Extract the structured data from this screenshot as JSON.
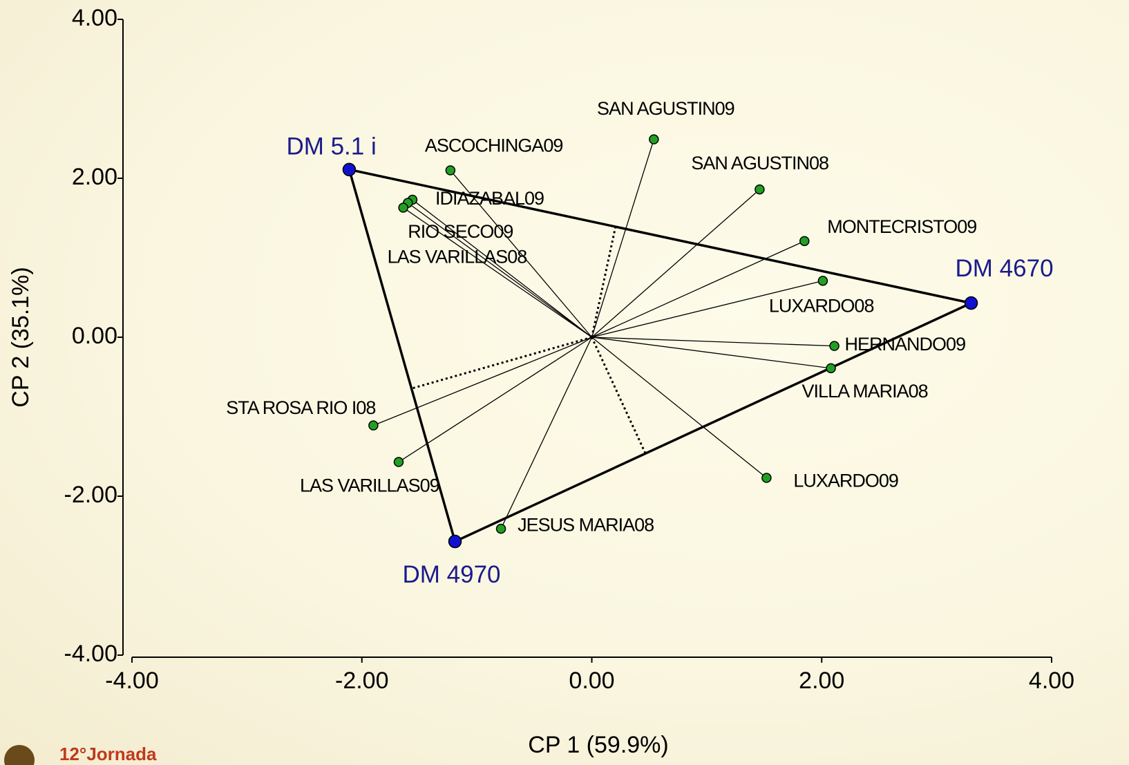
{
  "chart_data": {
    "type": "scatter",
    "xlabel": "CP 1 (59.9%)",
    "ylabel": "CP 2 (35.1%)",
    "xlim": [
      -4,
      4
    ],
    "ylim": [
      -4,
      4
    ],
    "xticks": [
      {
        "value": -4,
        "label": "-4.00"
      },
      {
        "value": -2,
        "label": "-2.00"
      },
      {
        "value": 0,
        "label": "0.00"
      },
      {
        "value": 2,
        "label": "2.00"
      },
      {
        "value": 4,
        "label": "4.00"
      }
    ],
    "yticks": [
      {
        "value": -4,
        "label": "-4.00"
      },
      {
        "value": -2,
        "label": "-2.00"
      },
      {
        "value": 0,
        "label": "0.00"
      },
      {
        "value": 2,
        "label": "2.00"
      },
      {
        "value": 4,
        "label": "4.00"
      }
    ],
    "genotypes": {
      "color": "#1010d0",
      "labels": [
        "DM 5.1 i",
        "DM 4670",
        "DM 4970"
      ],
      "x": [
        -2.11,
        3.3,
        -1.19
      ],
      "y": [
        2.11,
        0.43,
        -2.57
      ]
    },
    "environments": {
      "color": "#22a022",
      "labels": [
        "SAN AGUSTIN09",
        "ASCOCHINGA09",
        "SAN AGUSTIN08",
        "IDIAZABAL09",
        "RIO SECO09",
        "LAS VARILLAS08",
        "MONTECRISTO09",
        "LUXARDO08",
        "HERNANDO09",
        "VILLA MARIA08",
        "STA ROSA RIO I08",
        "LAS VARILLAS09",
        "LUXARDO09",
        "JESUS MARIA08"
      ],
      "x": [
        0.54,
        -1.23,
        1.46,
        -1.56,
        -1.6,
        -1.64,
        1.85,
        2.01,
        2.11,
        2.08,
        -1.9,
        -1.68,
        1.52,
        -0.79
      ],
      "y": [
        2.49,
        2.1,
        1.86,
        1.73,
        1.69,
        1.63,
        1.21,
        0.71,
        -0.11,
        -0.39,
        -1.11,
        -1.57,
        -1.77,
        -2.41
      ]
    },
    "footer_text": "12°Jornada"
  }
}
